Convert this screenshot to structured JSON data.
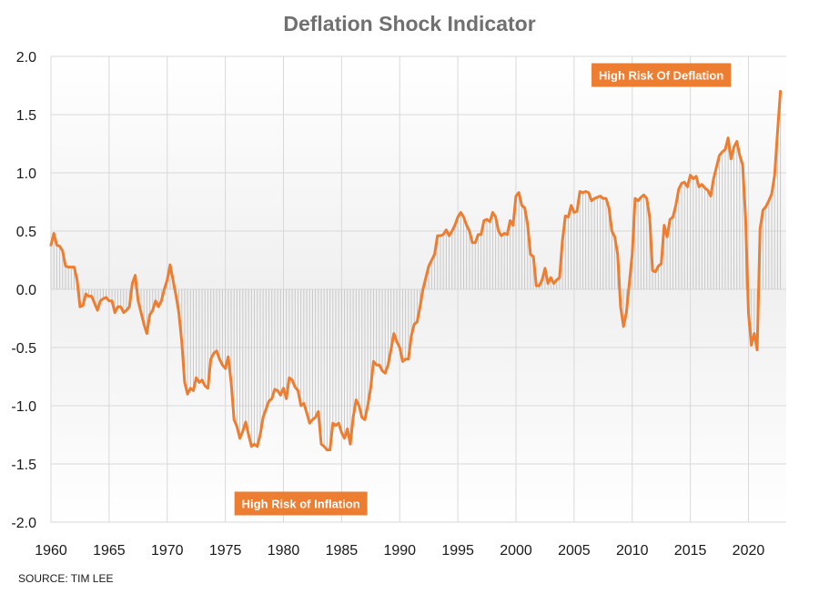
{
  "chart_data": {
    "type": "line",
    "title": "Deflation Shock Indicator",
    "xlabel": "",
    "ylabel": "",
    "xlim": [
      1960,
      2023.25
    ],
    "ylim": [
      -2.0,
      2.0
    ],
    "x_ticks": [
      "1960",
      "1965",
      "1970",
      "1975",
      "1980",
      "1985",
      "1990",
      "1995",
      "2000",
      "2005",
      "2010",
      "2015",
      "2020"
    ],
    "y_ticks": [
      "2.0",
      "1.5",
      "1.0",
      "0.5",
      "0.0",
      "-0.5",
      "-1.0",
      "-1.5",
      "-2.0"
    ],
    "grid": true,
    "series": [
      {
        "color": "#ed7d31",
        "points": [
          [
            1960.0,
            0.38
          ],
          [
            1960.25,
            0.48
          ],
          [
            1960.5,
            0.38
          ],
          [
            1960.75,
            0.37
          ],
          [
            1961.0,
            0.33
          ],
          [
            1961.25,
            0.2
          ],
          [
            1961.5,
            0.19
          ],
          [
            1962.0,
            0.19
          ],
          [
            1962.25,
            0.08
          ],
          [
            1962.5,
            -0.15
          ],
          [
            1962.75,
            -0.14
          ],
          [
            1963.0,
            -0.04
          ],
          [
            1963.25,
            -0.06
          ],
          [
            1963.5,
            -0.06
          ],
          [
            1964.0,
            -0.18
          ],
          [
            1964.25,
            -0.1
          ],
          [
            1964.5,
            -0.08
          ],
          [
            1964.75,
            -0.07
          ],
          [
            1965.0,
            -0.1
          ],
          [
            1965.25,
            -0.1
          ],
          [
            1965.5,
            -0.2
          ],
          [
            1965.75,
            -0.15
          ],
          [
            1966.0,
            -0.15
          ],
          [
            1966.25,
            -0.2
          ],
          [
            1966.5,
            -0.18
          ],
          [
            1966.75,
            -0.15
          ],
          [
            1967.0,
            0.05
          ],
          [
            1967.25,
            0.12
          ],
          [
            1967.5,
            -0.1
          ],
          [
            1967.75,
            -0.2
          ],
          [
            1968.0,
            -0.3
          ],
          [
            1968.25,
            -0.38
          ],
          [
            1968.5,
            -0.22
          ],
          [
            1968.75,
            -0.18
          ],
          [
            1969.0,
            -0.1
          ],
          [
            1969.25,
            -0.15
          ],
          [
            1969.5,
            -0.1
          ],
          [
            1969.75,
            0.0
          ],
          [
            1970.0,
            0.08
          ],
          [
            1970.25,
            0.21
          ],
          [
            1970.5,
            0.08
          ],
          [
            1970.75,
            -0.05
          ],
          [
            1971.0,
            -0.2
          ],
          [
            1971.25,
            -0.45
          ],
          [
            1971.5,
            -0.8
          ],
          [
            1971.75,
            -0.9
          ],
          [
            1972.0,
            -0.85
          ],
          [
            1972.25,
            -0.87
          ],
          [
            1972.5,
            -0.76
          ],
          [
            1972.75,
            -0.8
          ],
          [
            1973.0,
            -0.78
          ],
          [
            1973.25,
            -0.83
          ],
          [
            1973.5,
            -0.85
          ],
          [
            1973.75,
            -0.6
          ],
          [
            1974.0,
            -0.55
          ],
          [
            1974.25,
            -0.53
          ],
          [
            1974.5,
            -0.6
          ],
          [
            1974.75,
            -0.65
          ],
          [
            1975.0,
            -0.68
          ],
          [
            1975.25,
            -0.58
          ],
          [
            1975.5,
            -0.8
          ],
          [
            1975.75,
            -1.12
          ],
          [
            1976.0,
            -1.18
          ],
          [
            1976.25,
            -1.28
          ],
          [
            1976.5,
            -1.22
          ],
          [
            1976.75,
            -1.14
          ],
          [
            1977.0,
            -1.25
          ],
          [
            1977.25,
            -1.35
          ],
          [
            1977.5,
            -1.33
          ],
          [
            1977.75,
            -1.35
          ],
          [
            1978.0,
            -1.25
          ],
          [
            1978.25,
            -1.1
          ],
          [
            1978.5,
            -1.03
          ],
          [
            1978.75,
            -0.96
          ],
          [
            1979.0,
            -0.94
          ],
          [
            1979.25,
            -0.86
          ],
          [
            1979.5,
            -0.87
          ],
          [
            1979.75,
            -0.91
          ],
          [
            1980.0,
            -0.85
          ],
          [
            1980.25,
            -0.94
          ],
          [
            1980.5,
            -0.76
          ],
          [
            1980.75,
            -0.78
          ],
          [
            1981.0,
            -0.84
          ],
          [
            1981.25,
            -0.87
          ],
          [
            1981.5,
            -1.0
          ],
          [
            1981.75,
            -0.98
          ],
          [
            1982.0,
            -1.06
          ],
          [
            1982.25,
            -1.15
          ],
          [
            1982.5,
            -1.12
          ],
          [
            1982.75,
            -1.1
          ],
          [
            1983.0,
            -1.05
          ],
          [
            1983.25,
            -1.33
          ],
          [
            1983.5,
            -1.35
          ],
          [
            1983.75,
            -1.38
          ],
          [
            1984.0,
            -1.38
          ],
          [
            1984.25,
            -1.15
          ],
          [
            1984.5,
            -1.17
          ],
          [
            1984.75,
            -1.15
          ],
          [
            1985.0,
            -1.23
          ],
          [
            1985.25,
            -1.28
          ],
          [
            1985.5,
            -1.2
          ],
          [
            1985.75,
            -1.33
          ],
          [
            1986.0,
            -1.1
          ],
          [
            1986.25,
            -0.95
          ],
          [
            1986.5,
            -1.0
          ],
          [
            1986.75,
            -1.1
          ],
          [
            1987.0,
            -1.12
          ],
          [
            1987.25,
            -1.0
          ],
          [
            1987.5,
            -0.85
          ],
          [
            1987.75,
            -0.62
          ],
          [
            1988.0,
            -0.65
          ],
          [
            1988.25,
            -0.65
          ],
          [
            1988.5,
            -0.7
          ],
          [
            1988.75,
            -0.72
          ],
          [
            1989.0,
            -0.65
          ],
          [
            1989.25,
            -0.52
          ],
          [
            1989.5,
            -0.38
          ],
          [
            1989.75,
            -0.45
          ],
          [
            1990.0,
            -0.5
          ],
          [
            1990.25,
            -0.62
          ],
          [
            1990.5,
            -0.6
          ],
          [
            1990.75,
            -0.6
          ],
          [
            1991.0,
            -0.4
          ],
          [
            1991.25,
            -0.3
          ],
          [
            1991.5,
            -0.28
          ],
          [
            1991.75,
            -0.15
          ],
          [
            1992.0,
            0.0
          ],
          [
            1992.25,
            0.1
          ],
          [
            1992.5,
            0.2
          ],
          [
            1992.75,
            0.25
          ],
          [
            1993.0,
            0.3
          ],
          [
            1993.25,
            0.46
          ],
          [
            1993.5,
            0.46
          ],
          [
            1993.75,
            0.47
          ],
          [
            1994.0,
            0.51
          ],
          [
            1994.25,
            0.46
          ],
          [
            1994.5,
            0.5
          ],
          [
            1994.75,
            0.55
          ],
          [
            1995.0,
            0.62
          ],
          [
            1995.25,
            0.66
          ],
          [
            1995.5,
            0.62
          ],
          [
            1995.75,
            0.55
          ],
          [
            1996.0,
            0.5
          ],
          [
            1996.25,
            0.4
          ],
          [
            1996.5,
            0.4
          ],
          [
            1996.75,
            0.47
          ],
          [
            1997.0,
            0.47
          ],
          [
            1997.25,
            0.59
          ],
          [
            1997.5,
            0.6
          ],
          [
            1997.75,
            0.58
          ],
          [
            1998.0,
            0.66
          ],
          [
            1998.25,
            0.62
          ],
          [
            1998.5,
            0.5
          ],
          [
            1998.75,
            0.46
          ],
          [
            1999.0,
            0.48
          ],
          [
            1999.25,
            0.47
          ],
          [
            1999.5,
            0.59
          ],
          [
            1999.75,
            0.55
          ],
          [
            2000.0,
            0.8
          ],
          [
            2000.25,
            0.83
          ],
          [
            2000.5,
            0.72
          ],
          [
            2000.75,
            0.7
          ],
          [
            2001.0,
            0.56
          ],
          [
            2001.25,
            0.3
          ],
          [
            2001.5,
            0.28
          ],
          [
            2001.75,
            0.03
          ],
          [
            2002.0,
            0.03
          ],
          [
            2002.25,
            0.08
          ],
          [
            2002.5,
            0.18
          ],
          [
            2002.75,
            0.05
          ],
          [
            2003.0,
            0.1
          ],
          [
            2003.25,
            0.05
          ],
          [
            2003.5,
            0.08
          ],
          [
            2003.75,
            0.1
          ],
          [
            2004.0,
            0.42
          ],
          [
            2004.25,
            0.63
          ],
          [
            2004.5,
            0.62
          ],
          [
            2004.75,
            0.72
          ],
          [
            2005.0,
            0.66
          ],
          [
            2005.25,
            0.67
          ],
          [
            2005.5,
            0.84
          ],
          [
            2005.75,
            0.83
          ],
          [
            2006.0,
            0.84
          ],
          [
            2006.25,
            0.83
          ],
          [
            2006.5,
            0.76
          ],
          [
            2006.75,
            0.78
          ],
          [
            2007.0,
            0.79
          ],
          [
            2007.25,
            0.8
          ],
          [
            2007.5,
            0.78
          ],
          [
            2007.75,
            0.78
          ],
          [
            2008.0,
            0.7
          ],
          [
            2008.25,
            0.5
          ],
          [
            2008.5,
            0.45
          ],
          [
            2008.75,
            0.3
          ],
          [
            2009.0,
            -0.15
          ],
          [
            2009.25,
            -0.32
          ],
          [
            2009.5,
            -0.2
          ],
          [
            2009.75,
            0.05
          ],
          [
            2010.0,
            0.3
          ],
          [
            2010.25,
            0.78
          ],
          [
            2010.5,
            0.76
          ],
          [
            2010.75,
            0.79
          ],
          [
            2011.0,
            0.81
          ],
          [
            2011.25,
            0.78
          ],
          [
            2011.5,
            0.62
          ],
          [
            2011.75,
            0.16
          ],
          [
            2012.0,
            0.15
          ],
          [
            2012.25,
            0.2
          ],
          [
            2012.5,
            0.22
          ],
          [
            2012.75,
            0.55
          ],
          [
            2013.0,
            0.45
          ],
          [
            2013.25,
            0.6
          ],
          [
            2013.5,
            0.62
          ],
          [
            2013.75,
            0.72
          ],
          [
            2014.0,
            0.86
          ],
          [
            2014.25,
            0.91
          ],
          [
            2014.5,
            0.92
          ],
          [
            2014.75,
            0.88
          ],
          [
            2015.0,
            0.98
          ],
          [
            2015.25,
            0.95
          ],
          [
            2015.5,
            0.97
          ],
          [
            2015.75,
            0.88
          ],
          [
            2016.0,
            0.9
          ],
          [
            2016.25,
            0.87
          ],
          [
            2016.5,
            0.85
          ],
          [
            2016.75,
            0.8
          ],
          [
            2017.0,
            0.95
          ],
          [
            2017.25,
            1.05
          ],
          [
            2017.5,
            1.15
          ],
          [
            2017.75,
            1.18
          ],
          [
            2018.0,
            1.2
          ],
          [
            2018.25,
            1.3
          ],
          [
            2018.5,
            1.12
          ],
          [
            2018.75,
            1.22
          ],
          [
            2019.0,
            1.27
          ],
          [
            2019.25,
            1.15
          ],
          [
            2019.5,
            1.07
          ],
          [
            2019.75,
            0.62
          ],
          [
            2020.0,
            -0.2
          ],
          [
            2020.25,
            -0.48
          ],
          [
            2020.5,
            -0.38
          ],
          [
            2020.75,
            -0.52
          ],
          [
            2021.0,
            0.52
          ],
          [
            2021.25,
            0.68
          ],
          [
            2021.5,
            0.71
          ],
          [
            2021.75,
            0.76
          ],
          [
            2022.0,
            0.82
          ],
          [
            2022.25,
            0.98
          ],
          [
            2022.5,
            1.35
          ],
          [
            2022.75,
            1.7
          ]
        ]
      }
    ],
    "annotations": [
      {
        "text": "High Risk Of Deflation",
        "x": 2012.5,
        "y": 1.84,
        "color": "#ed7d31"
      },
      {
        "text": "High Risk of Inflation",
        "x": 1981.5,
        "y": -1.84,
        "color": "#ed7d31"
      }
    ]
  },
  "source": "SOURCE: TIM LEE"
}
